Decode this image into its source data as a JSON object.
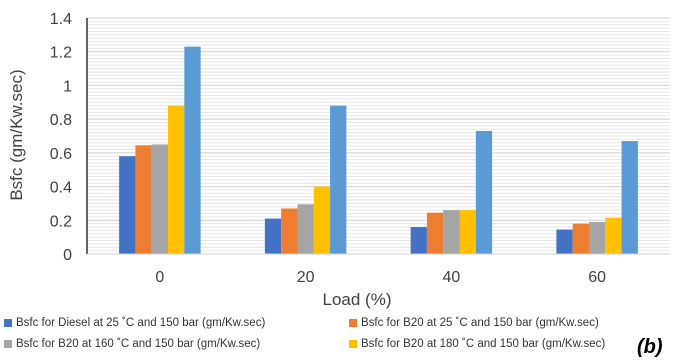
{
  "chart_data": {
    "type": "bar",
    "xlabel": "Load (%)",
    "ylabel": "Bsfc (gm/Kw.sec)",
    "ylim": [
      0,
      1.4
    ],
    "yticks": [
      "0",
      "0.2",
      "0.4",
      "0.6",
      "0.8",
      "1",
      "1.2",
      "1.4"
    ],
    "categories": [
      "0",
      "20",
      "40",
      "60"
    ],
    "grid": true,
    "legend_position": "bottom",
    "series": [
      {
        "name": "Bsfc for Diesel at 25 ˚C and 150 bar (gm/Kw.sec)",
        "color": "#4472C4",
        "values": [
          0.58,
          0.21,
          0.16,
          0.145
        ]
      },
      {
        "name": "Bsfc for B20 at 25 ˚C and 150 bar (gm/Kw.sec)",
        "color": "#ED7D31",
        "values": [
          0.645,
          0.27,
          0.245,
          0.18
        ]
      },
      {
        "name": "Bsfc for B20 at 160 ˚C and 150 bar (gm/Kw.sec)",
        "color": "#A5A5A5",
        "values": [
          0.65,
          0.295,
          0.26,
          0.19
        ]
      },
      {
        "name": "Bsfc for B20 at 180 ˚C and 150 bar (gm/Kw.sec)",
        "color": "#FFC000",
        "values": [
          0.88,
          0.4,
          0.26,
          0.215
        ]
      },
      {
        "name": "",
        "color": "#5B9BD5",
        "values": [
          1.23,
          0.88,
          0.73,
          0.67
        ]
      }
    ]
  },
  "panel_label": "(b)"
}
